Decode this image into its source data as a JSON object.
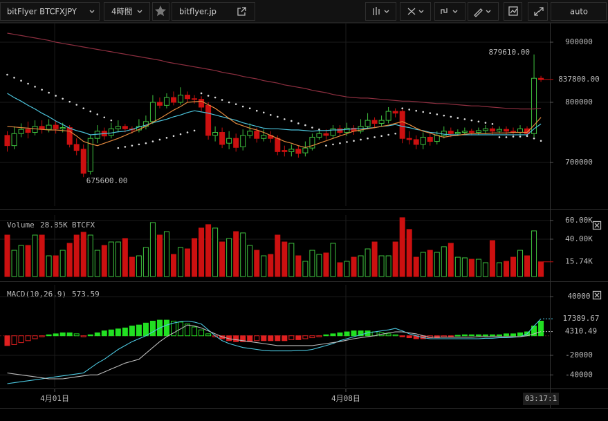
{
  "toolbar": {
    "symbol": "bitFlyer BTCFXJPY",
    "interval": "4時間",
    "site": "bitflyer.jp",
    "scale": "auto"
  },
  "chart_data": [
    {
      "type": "candlestick",
      "up_color": "#3fc23f",
      "down_color": "#cc1010",
      "grid": true,
      "ylim": [
        627600,
        932200
      ],
      "yticks": [
        900000,
        800000,
        700000
      ],
      "max_label": "879610.00",
      "min_label": "675600.00",
      "last_label": "837800.00",
      "open": [
        745000,
        728000,
        748000,
        755000,
        750000,
        760000,
        755000,
        762000,
        756000,
        758000,
        730000,
        722000,
        685000,
        740000,
        752000,
        745000,
        756000,
        760000,
        756000,
        754000,
        760000,
        768000,
        800000,
        795000,
        808000,
        800000,
        812000,
        806000,
        805000,
        795000,
        745000,
        750000,
        732000,
        740000,
        726000,
        745000,
        752000,
        740000,
        745000,
        740000,
        720000,
        718000,
        722000,
        716000,
        724000,
        742000,
        748000,
        745000,
        756000,
        750000,
        757000,
        752000,
        760000,
        770000,
        765000,
        770000,
        785000,
        785000,
        740000,
        738000,
        730000,
        742000,
        735000,
        745000,
        752000,
        748000,
        750000,
        752000,
        750000,
        753000,
        756000,
        752000,
        755000,
        752000,
        750000,
        756000,
        748000,
        840000
      ],
      "high": [
        752000,
        760000,
        765000,
        768000,
        770000,
        770000,
        772000,
        770000,
        766000,
        762000,
        740000,
        730000,
        745000,
        762000,
        758000,
        766000,
        770000,
        764000,
        760000,
        772000,
        778000,
        812000,
        808000,
        815000,
        818000,
        825000,
        818000,
        812000,
        810000,
        800000,
        760000,
        758000,
        752000,
        748000,
        755000,
        765000,
        758000,
        755000,
        752000,
        745000,
        728000,
        730000,
        728000,
        735000,
        748000,
        755000,
        755000,
        762000,
        762000,
        766000,
        762000,
        772000,
        782000,
        775000,
        778000,
        792000,
        790000,
        790000,
        752000,
        745000,
        750000,
        748000,
        752000,
        760000,
        758000,
        755000,
        758000,
        756000,
        758000,
        762000,
        760000,
        760000,
        760000,
        758000,
        762000,
        760000,
        879610,
        844000
      ],
      "low": [
        718000,
        722000,
        742000,
        740000,
        745000,
        748000,
        750000,
        748000,
        750000,
        725000,
        712000,
        675600,
        680000,
        732000,
        738000,
        740000,
        750000,
        750000,
        748000,
        750000,
        755000,
        764000,
        790000,
        790000,
        795000,
        796000,
        800000,
        798000,
        785000,
        738000,
        735000,
        724000,
        722000,
        718000,
        720000,
        740000,
        733000,
        735000,
        733000,
        712000,
        710000,
        710000,
        708000,
        710000,
        720000,
        738000,
        738000,
        740000,
        744000,
        744000,
        746000,
        748000,
        755000,
        758000,
        760000,
        765000,
        775000,
        732000,
        730000,
        722000,
        722000,
        728000,
        730000,
        740000,
        742000,
        744000,
        746000,
        745000,
        746000,
        748000,
        746000,
        748000,
        746000,
        744000,
        745000,
        742000,
        742000,
        834000
      ],
      "close": [
        728000,
        748000,
        755000,
        750000,
        760000,
        755000,
        762000,
        756000,
        758000,
        730000,
        720000,
        682000,
        740000,
        752000,
        744000,
        756000,
        760000,
        756000,
        754000,
        760000,
        768000,
        800000,
        795000,
        808000,
        800000,
        812000,
        806000,
        805000,
        792000,
        745000,
        750000,
        730000,
        740000,
        725000,
        745000,
        752000,
        740000,
        745000,
        740000,
        718000,
        718000,
        722000,
        715000,
        724000,
        742000,
        748000,
        745000,
        756000,
        750000,
        757000,
        752000,
        760000,
        770000,
        765000,
        770000,
        785000,
        782000,
        740000,
        738000,
        730000,
        742000,
        735000,
        745000,
        752000,
        748000,
        750000,
        752000,
        750000,
        753000,
        756000,
        752000,
        755000,
        752000,
        750000,
        756000,
        748000,
        840000,
        837800
      ],
      "series": [
        {
          "color": "#8e2f40",
          "values": [
            915000,
            913000,
            911000,
            909000,
            907000,
            905000,
            903000,
            900000,
            898000,
            896000,
            894000,
            892000,
            890000,
            888000,
            886000,
            884000,
            882000,
            880000,
            878000,
            876000,
            874000,
            872000,
            870000,
            867000,
            865000,
            863000,
            861000,
            859000,
            857000,
            855000,
            853000,
            850000,
            848000,
            846000,
            843000,
            841000,
            839000,
            836000,
            834000,
            832000,
            829000,
            827000,
            825000,
            823000,
            820000,
            818000,
            816000,
            813000,
            811000,
            809000,
            808000,
            807000,
            807000,
            806000,
            805000,
            804000,
            803000,
            802000,
            802000,
            801000,
            800000,
            799000,
            798000,
            798000,
            797000,
            796000,
            795000,
            794000,
            794000,
            793000,
            792000,
            791000,
            790000,
            790000,
            789000,
            789000,
            789000,
            790000
          ]
        },
        {
          "color": "#4cc4dc",
          "values": [
            815000,
            808000,
            802000,
            795000,
            789000,
            782000,
            776000,
            769000,
            763000,
            757000,
            753000,
            750000,
            746000,
            747000,
            748000,
            749000,
            751000,
            752000,
            755000,
            759000,
            762000,
            766000,
            769000,
            772000,
            776000,
            779000,
            783000,
            786000,
            784000,
            782000,
            779000,
            776000,
            773000,
            770000,
            766000,
            763000,
            760000,
            757000,
            756000,
            756000,
            755000,
            754000,
            754000,
            753000,
            752000,
            753000,
            753000,
            754000,
            754000,
            755000,
            756000,
            756000,
            757000,
            758000,
            760000,
            761000,
            763000,
            760000,
            758000,
            755000,
            753000,
            750000,
            749000,
            747000,
            746000,
            746000,
            746000,
            746000,
            746000,
            746000,
            746000,
            746000,
            746000,
            746000,
            746000,
            746000,
            756000,
            764000
          ]
        },
        {
          "color": "#e38a3e",
          "values": [
            760000,
            759000,
            758000,
            757000,
            756000,
            755000,
            754000,
            754000,
            753000,
            752000,
            744000,
            735000,
            731000,
            728000,
            732000,
            736000,
            740000,
            745000,
            750000,
            755000,
            760000,
            767000,
            773000,
            780000,
            787000,
            793000,
            800000,
            801000,
            802000,
            796000,
            790000,
            782000,
            773000,
            765000,
            761000,
            757000,
            754000,
            750000,
            745000,
            740000,
            735000,
            732000,
            728000,
            725000,
            728000,
            732000,
            736000,
            740000,
            744000,
            748000,
            752000,
            754000,
            756000,
            758000,
            760000,
            762000,
            765000,
            768000,
            763000,
            757000,
            752000,
            749000,
            745000,
            742000,
            744000,
            745000,
            747000,
            748000,
            748000,
            748000,
            749000,
            749000,
            749000,
            750000,
            750000,
            750000,
            762000,
            775000
          ]
        },
        {
          "color": "#dddddd",
          "style": "dots",
          "values": [
            846000,
            841000,
            836000,
            831000,
            826000,
            821000,
            816000,
            811000,
            806000,
            801000,
            796000,
            790000,
            785000,
            780000,
            775000,
            770000,
            724000,
            726000,
            728000,
            730000,
            732000,
            735000,
            738000,
            741000,
            744000,
            747000,
            750000,
            753000,
            815000,
            811000,
            808000,
            804000,
            800000,
            797000,
            793000,
            790000,
            786000,
            783000,
            779000,
            776000,
            772000,
            769000,
            765000,
            762000,
            758000,
            755000,
            728000,
            730000,
            732000,
            734000,
            736000,
            738000,
            740000,
            742000,
            744000,
            746000,
            748000,
            790000,
            788000,
            786000,
            784000,
            782000,
            780000,
            778000,
            776000,
            774000,
            772000,
            770000,
            768000,
            766000,
            764000,
            742000,
            742000,
            743000,
            743000,
            744000,
            740000,
            736000
          ]
        }
      ]
    },
    {
      "type": "bar",
      "legend": "Volume",
      "legend_value": "28.85K",
      "legend_unit": "BTCFX",
      "grid": true,
      "ylim": [
        0,
        65900
      ],
      "yticks": [
        {
          "value": 60000,
          "label": "60.00K"
        },
        {
          "value": 40000,
          "label": "40.00K"
        }
      ],
      "last_label": "15.74K",
      "values": [
        44400,
        28100,
        33300,
        33300,
        44400,
        44400,
        22200,
        22200,
        28100,
        35600,
        44400,
        47400,
        44400,
        28100,
        33300,
        37000,
        37000,
        40700,
        20700,
        22200,
        31100,
        57800,
        44400,
        48100,
        23700,
        31100,
        29600,
        40700,
        51900,
        55600,
        51900,
        37000,
        40700,
        48100,
        46700,
        33300,
        28100,
        22200,
        23700,
        44400,
        37000,
        35600,
        22200,
        16300,
        28100,
        23700,
        25200,
        35600,
        14800,
        16300,
        20700,
        22200,
        29600,
        37000,
        22200,
        22200,
        37000,
        63000,
        50400,
        20700,
        25900,
        28100,
        25900,
        31900,
        35600,
        20700,
        20000,
        18500,
        18500,
        14800,
        38500,
        14800,
        16300,
        20700,
        28100,
        22200,
        48900,
        15740
      ]
    },
    {
      "type": "macd",
      "legend": "MACD(10,26,9)",
      "legend_value": "573.59",
      "grid": true,
      "ylim": [
        -52500,
        52100
      ],
      "yticks": [
        40000,
        -20000,
        -40000
      ],
      "xlim": [
        -1.048,
        78.29
      ],
      "xticks": [
        {
          "value": 6.84,
          "label": "4月01日"
        },
        {
          "value": 48.85,
          "label": "4月08日"
        },
        {
          "value": 77,
          "label": "03:17:1"
        }
      ],
      "up_color": "#22e022",
      "down_color": "#e02020",
      "histogram": [
        -10000,
        -9000,
        -7000,
        -5000,
        -3000,
        -1000,
        1000,
        2000,
        3000,
        3000,
        2000,
        -1000,
        1000,
        3000,
        5000,
        6000,
        7000,
        8000,
        10000,
        11000,
        13000,
        15000,
        16000,
        16000,
        15000,
        14000,
        12000,
        9000,
        6000,
        2000,
        -1000,
        -3000,
        -5000,
        -6000,
        -6000,
        -6000,
        -5000,
        -5000,
        -5000,
        -5000,
        -5000,
        -4000,
        -4000,
        -3000,
        -2000,
        -1000,
        1000,
        2000,
        3000,
        4000,
        5000,
        5000,
        5000,
        4000,
        3000,
        2000,
        1000,
        -1000,
        -2000,
        -3000,
        -3000,
        -2000,
        -2000,
        -1000,
        -1000,
        500,
        1000,
        1000,
        1000,
        1000,
        1000,
        1000,
        2000,
        2000,
        3000,
        4000,
        10000,
        15000
      ],
      "series": [
        {
          "color": "#4cc8e0",
          "last_label": "17389.67",
          "values": [
            -49000,
            -48000,
            -47000,
            -46000,
            -45000,
            -44000,
            -43000,
            -42000,
            -41000,
            -40000,
            -39000,
            -38000,
            -33000,
            -28000,
            -24000,
            -19000,
            -14000,
            -10000,
            -6000,
            -3000,
            0,
            4000,
            8000,
            11000,
            13000,
            14500,
            15000,
            14000,
            12000,
            6000,
            0,
            -5000,
            -8000,
            -10000,
            -12000,
            -13000,
            -14000,
            -15000,
            -15500,
            -15500,
            -15500,
            -15500,
            -15000,
            -15000,
            -14000,
            -12000,
            -10000,
            -8000,
            -5000,
            -3000,
            -1000,
            1000,
            3000,
            4000,
            5000,
            6000,
            7500,
            5000,
            2000,
            0,
            -2000,
            -3000,
            -3000,
            -3000,
            -3000,
            -3000,
            -3000,
            -3000,
            -3000,
            -2500,
            -2500,
            -2000,
            -2000,
            -1500,
            -1000,
            2000,
            10000,
            17389.67
          ]
        },
        {
          "color": "#bbbbbb",
          "last_label": "4310.49",
          "values": [
            -38000,
            -39000,
            -40000,
            -41000,
            -42000,
            -43000,
            -44000,
            -44000,
            -44000,
            -43000,
            -42000,
            -41000,
            -40000,
            -40000,
            -37000,
            -34000,
            -31000,
            -28000,
            -26000,
            -24000,
            -18000,
            -12000,
            -6000,
            -1000,
            3000,
            7000,
            11000,
            10000,
            8000,
            5000,
            2000,
            -1000,
            -3000,
            -4000,
            -5000,
            -6000,
            -7000,
            -8000,
            -9000,
            -10000,
            -10000,
            -10000,
            -10000,
            -10000,
            -10000,
            -9000,
            -8000,
            -7000,
            -6000,
            -4500,
            -3000,
            -2000,
            -1000,
            0,
            1500,
            3000,
            4000,
            4000,
            3000,
            2000,
            0,
            -1500,
            -1500,
            -1500,
            -1500,
            -1500,
            -1500,
            -1500,
            -1000,
            -1000,
            -1000,
            -1000,
            -1000,
            -1000,
            -1000,
            0,
            2000,
            4310.49
          ]
        }
      ]
    }
  ]
}
